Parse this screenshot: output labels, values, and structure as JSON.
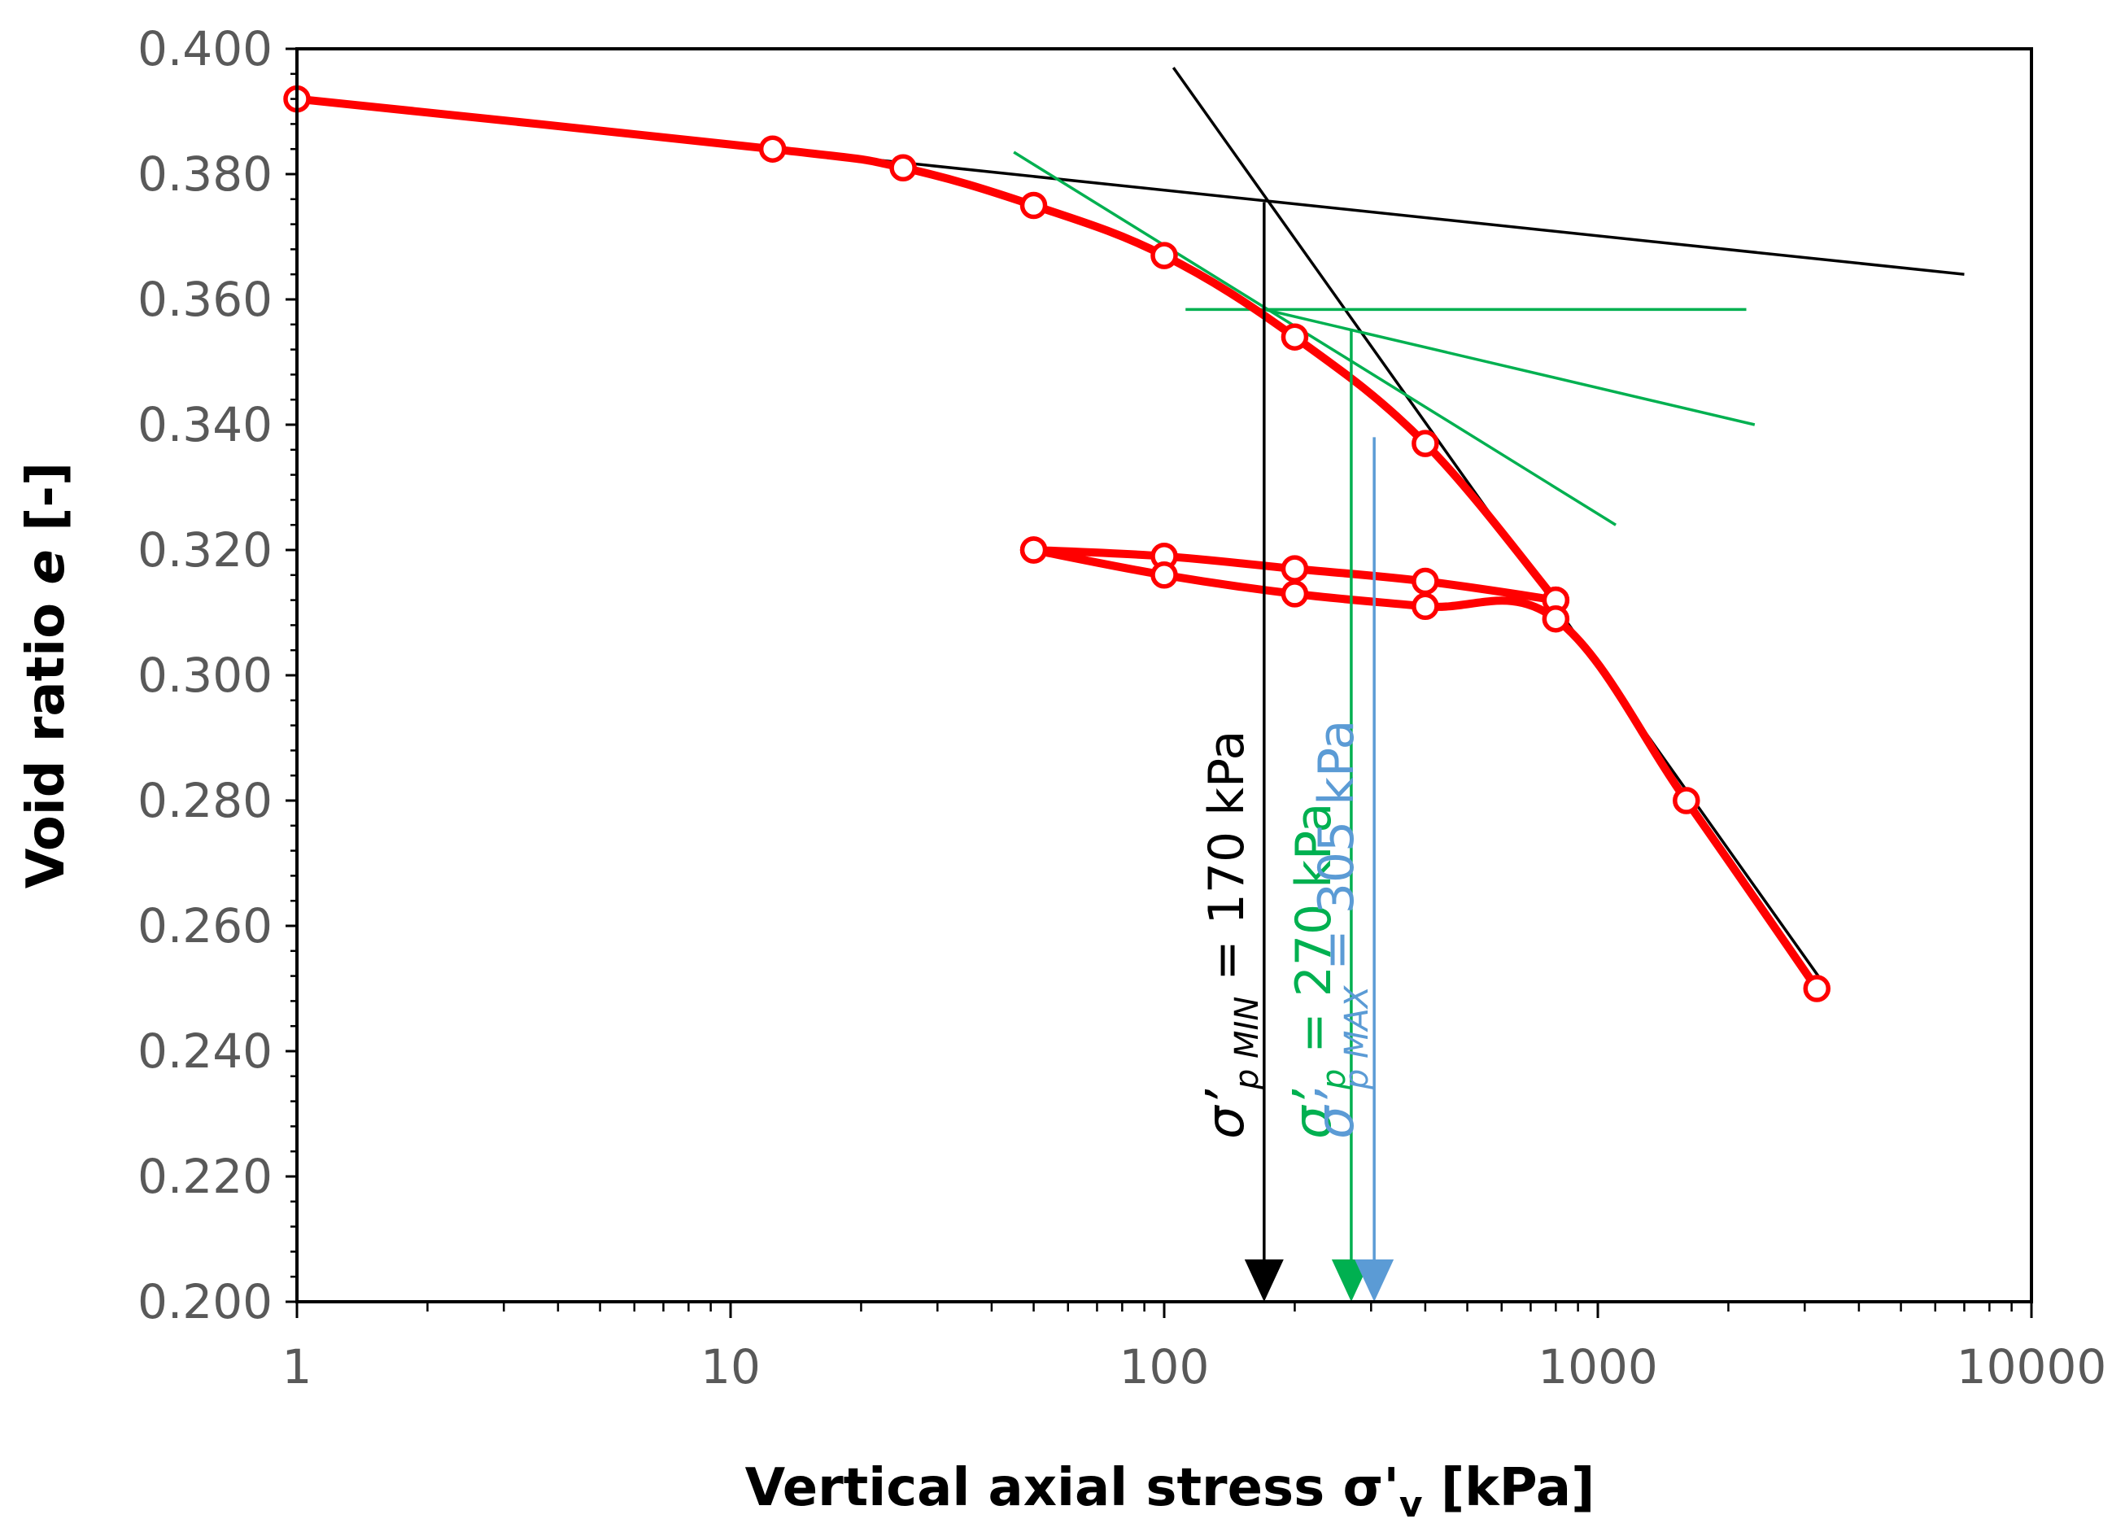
{
  "chart_data": {
    "type": "scatter",
    "xscale": "log",
    "xlabel": "Vertical axial stress σ'",
    "xlabel_sub": "v",
    "xlabel_unit": " [kPa]",
    "ylabel": "Void ratio ",
    "ylabel_var": "e",
    "ylabel_unit": " [-]",
    "xlim": [
      1,
      10000
    ],
    "ylim": [
      0.2,
      0.4
    ],
    "xticks": [
      1,
      10,
      100,
      1000,
      10000
    ],
    "xtick_labels": [
      "1",
      "10",
      "100",
      "1000",
      "10000"
    ],
    "yticks": [
      0.2,
      0.22,
      0.24,
      0.26,
      0.28,
      0.3,
      0.32,
      0.34,
      0.36,
      0.38,
      0.4
    ],
    "ytick_labels": [
      "0.200",
      "0.220",
      "0.240",
      "0.260",
      "0.280",
      "0.300",
      "0.320",
      "0.340",
      "0.360",
      "0.380",
      "0.400"
    ],
    "series": [
      {
        "name": "loading",
        "color": "#ff0000",
        "x": [
          1,
          12.5,
          25,
          50,
          100,
          200,
          400,
          800
        ],
        "y": [
          0.392,
          0.384,
          0.381,
          0.375,
          0.367,
          0.354,
          0.337,
          0.312
        ]
      },
      {
        "name": "unloading",
        "color": "#ff0000",
        "x": [
          800,
          400,
          200,
          100,
          50
        ],
        "y": [
          0.312,
          0.315,
          0.317,
          0.319,
          0.32
        ]
      },
      {
        "name": "reloading",
        "color": "#ff0000",
        "x": [
          50,
          100,
          200,
          400,
          800,
          1600,
          3200
        ],
        "y": [
          0.32,
          0.316,
          0.313,
          0.311,
          0.309,
          0.28,
          0.25
        ]
      }
    ],
    "construction_lines": [
      {
        "name": "recompression-line",
        "color": "#000000",
        "x": [
          1,
          7000
        ],
        "y": [
          0.392,
          0.364
        ]
      },
      {
        "name": "virgin-compression-line",
        "color": "#000000",
        "x": [
          105,
          3300
        ],
        "y": [
          0.397,
          0.251
        ]
      },
      {
        "name": "tangent-line",
        "color": "#00b050",
        "x": [
          45,
          1100
        ],
        "y": [
          0.3835,
          0.324
        ]
      },
      {
        "name": "horizontal-line",
        "color": "#00b050",
        "x": [
          112,
          2200
        ],
        "y": [
          0.3584,
          0.3584
        ]
      },
      {
        "name": "bisector-line",
        "color": "#00b050",
        "x": [
          170,
          2300
        ],
        "y": [
          0.3584,
          0.34
        ]
      }
    ],
    "annotations": [
      {
        "name": "sigma-p-min",
        "x": 170,
        "y_from": 0.3755,
        "color": "#000000",
        "symbol": "σ’",
        "sub": "p MIN",
        "value": " = 170 kPa"
      },
      {
        "name": "sigma-p",
        "x": 270,
        "y_from": 0.3553,
        "color": "#00b050",
        "symbol": "σ’",
        "sub": "p",
        "value": " = 270 kPa"
      },
      {
        "name": "sigma-p-max",
        "x": 305,
        "y_from": 0.338,
        "color": "#5b9bd5",
        "symbol": "σ’",
        "sub": "p MAX",
        "value": " = 305 kPa"
      }
    ]
  }
}
